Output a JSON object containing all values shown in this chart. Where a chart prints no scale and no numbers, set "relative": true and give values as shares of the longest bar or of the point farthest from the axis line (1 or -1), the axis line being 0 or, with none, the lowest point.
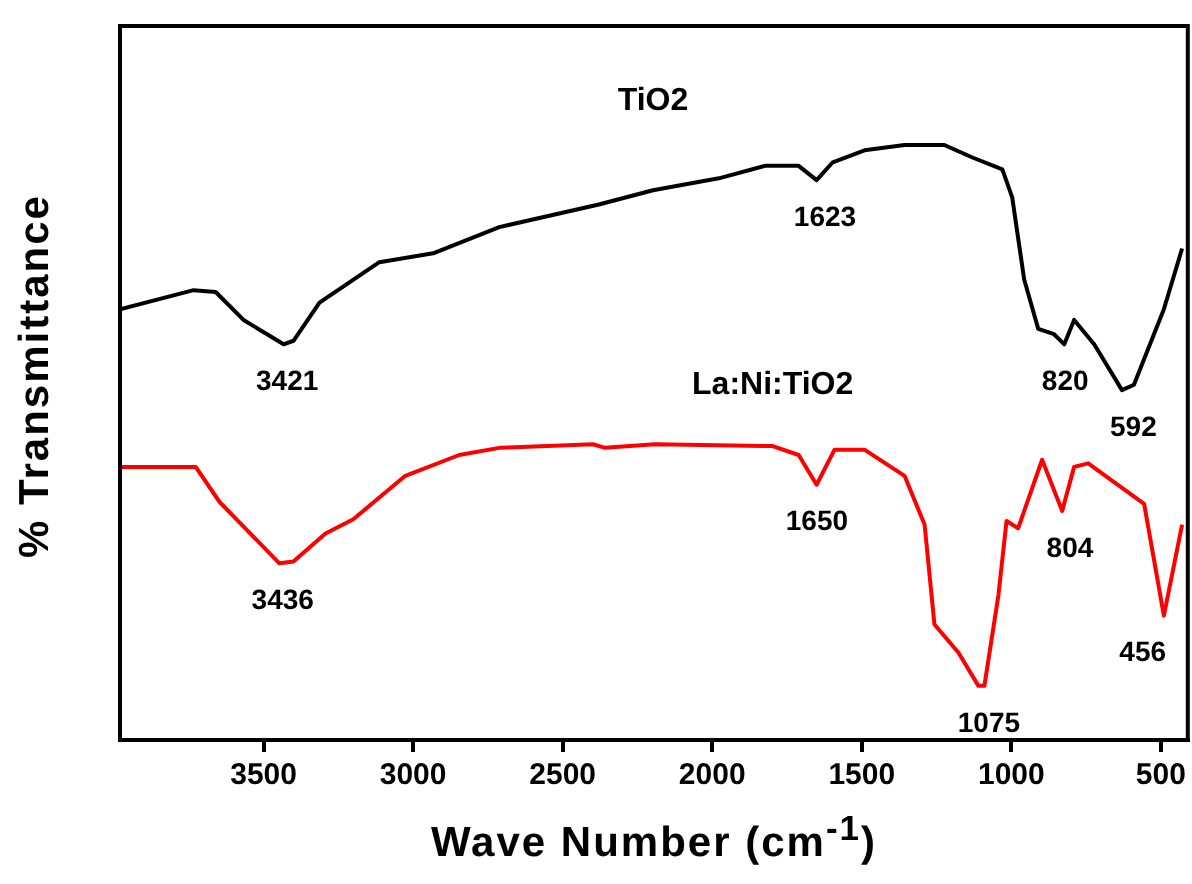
{
  "chart_data": {
    "type": "line",
    "relative": true,
    "xlabel": "Wave Number (cm$^{-1}$)",
    "ylabel": "% Transmittance",
    "xlim": [
      3980,
      410
    ],
    "xticks": [
      3500,
      3000,
      2500,
      2000,
      1500,
      1000,
      500
    ],
    "legend": false,
    "grid": false,
    "series": [
      {
        "name": "TiO2",
        "color": "#000000",
        "x": [
          3980,
          3734,
          3660,
          3567,
          3433,
          3400,
          3313,
          3113,
          2933,
          2893,
          2712,
          2379,
          2198,
          1978,
          1824,
          1711,
          1651,
          1597,
          1491,
          1357,
          1224,
          1130,
          1030,
          997,
          957,
          910,
          857,
          823,
          790,
          723,
          630,
          590,
          490,
          429
        ],
        "values": [
          0.724,
          0.756,
          0.753,
          0.706,
          0.665,
          0.671,
          0.735,
          0.803,
          0.818,
          0.826,
          0.862,
          0.9,
          0.924,
          0.944,
          0.965,
          0.965,
          0.941,
          0.971,
          0.991,
          1,
          1,
          0.979,
          0.959,
          0.912,
          0.774,
          0.691,
          0.682,
          0.665,
          0.706,
          0.665,
          0.588,
          0.597,
          0.724,
          0.826
        ]
      },
      {
        "name": "La:Ni:TiO2",
        "color": "#ff0000",
        "x": [
          3980,
          3727,
          3647,
          3447,
          3400,
          3293,
          3200,
          3026,
          2846,
          2712,
          2399,
          2358,
          2192,
          1798,
          1711,
          1651,
          1591,
          1491,
          1357,
          1290,
          1257,
          1177,
          1110,
          1090,
          1043,
          1016,
          977,
          897,
          830,
          790,
          743,
          556,
          490,
          429
        ],
        "values": [
          0.459,
          0.459,
          0.4,
          0.297,
          0.3,
          0.347,
          0.371,
          0.444,
          0.479,
          0.491,
          0.497,
          0.491,
          0.497,
          0.494,
          0.479,
          0.429,
          0.488,
          0.488,
          0.444,
          0.362,
          0.194,
          0.147,
          0.091,
          0.091,
          0.244,
          0.368,
          0.356,
          0.471,
          0.385,
          0.459,
          0.465,
          0.397,
          0.209,
          0.362
        ]
      }
    ],
    "annotations": [
      {
        "text": "3421",
        "x": 3421,
        "y": 0.665
      },
      {
        "text": "1623",
        "x": 1623,
        "y": 0.941
      },
      {
        "text": "820",
        "x": 820,
        "y": 0.665
      },
      {
        "text": "592",
        "x": 592,
        "y": 0.588
      },
      {
        "text": "3436",
        "x": 3436,
        "y": 0.297
      },
      {
        "text": "1650",
        "x": 1650,
        "y": 0.429
      },
      {
        "text": "804",
        "x": 804,
        "y": 0.385
      },
      {
        "text": "1075",
        "x": 1075,
        "y": 0.091
      },
      {
        "text": "456",
        "x": 456,
        "y": 0.209
      }
    ]
  }
}
